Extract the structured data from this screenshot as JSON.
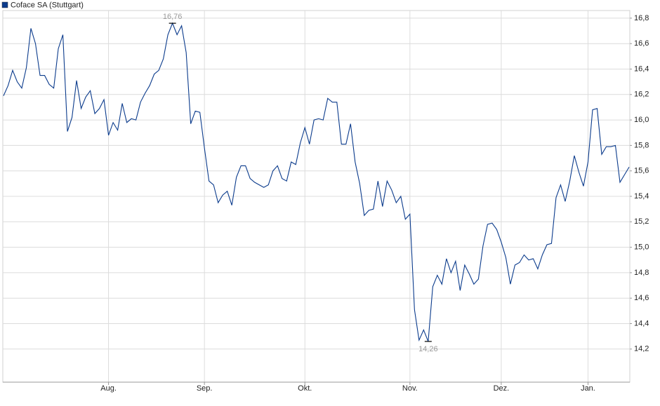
{
  "chart_data": {
    "type": "line",
    "series": [
      {
        "name": "Coface SA (Stuttgart)",
        "color": "#0b3b8c",
        "values": [
          16.19,
          16.27,
          16.39,
          16.3,
          16.25,
          16.41,
          16.72,
          16.6,
          16.35,
          16.35,
          16.28,
          16.25,
          16.56,
          16.67,
          15.91,
          16.02,
          16.31,
          16.09,
          16.18,
          16.23,
          16.05,
          16.09,
          16.16,
          15.88,
          15.98,
          15.92,
          16.13,
          15.98,
          16.01,
          16.0,
          16.14,
          16.21,
          16.27,
          16.36,
          16.39,
          16.48,
          16.67,
          16.76,
          16.67,
          16.74,
          16.53,
          15.97,
          16.07,
          16.06,
          15.78,
          15.52,
          15.49,
          15.35,
          15.41,
          15.44,
          15.33,
          15.55,
          15.64,
          15.64,
          15.54,
          15.51,
          15.49,
          15.47,
          15.49,
          15.6,
          15.64,
          15.54,
          15.52,
          15.67,
          15.65,
          15.82,
          15.94,
          15.81,
          16.0,
          16.01,
          16.0,
          16.17,
          16.14,
          16.14,
          15.81,
          15.81,
          15.97,
          15.67,
          15.5,
          15.25,
          15.29,
          15.3,
          15.52,
          15.32,
          15.52,
          15.45,
          15.35,
          15.4,
          15.22,
          15.26,
          14.51,
          14.27,
          14.35,
          14.26,
          14.69,
          14.78,
          14.71,
          14.91,
          14.8,
          14.89,
          14.66,
          14.86,
          14.79,
          14.71,
          14.75,
          15.01,
          15.18,
          15.19,
          15.14,
          15.04,
          14.92,
          14.71,
          14.86,
          14.88,
          14.94,
          14.9,
          14.91,
          14.83,
          14.94,
          15.02,
          15.03,
          15.39,
          15.49,
          15.36,
          15.52,
          15.72,
          15.59,
          15.48,
          15.67,
          16.08,
          16.09,
          15.73,
          15.79,
          15.79,
          15.8,
          15.51,
          15.57,
          15.63
        ],
        "value_labels": [
          null,
          null,
          null,
          null,
          null,
          null,
          null,
          null,
          null,
          null,
          null,
          null,
          null,
          null,
          null,
          null,
          null,
          null,
          null,
          null,
          null,
          null,
          null,
          null,
          null,
          null,
          null,
          null,
          null,
          null,
          null,
          null,
          null,
          null,
          null,
          null,
          null,
          "16,76",
          null,
          null,
          null,
          null,
          null,
          null,
          null,
          null,
          null,
          null,
          null,
          null,
          null,
          null,
          null,
          null,
          null,
          null,
          null,
          null,
          null,
          null,
          null,
          null,
          null,
          null,
          null,
          null,
          null,
          null,
          null,
          null,
          null,
          null,
          null,
          null,
          null,
          null,
          null,
          null,
          null,
          null,
          null,
          null,
          null,
          null,
          null,
          null,
          null,
          null,
          null,
          null,
          null,
          null,
          null,
          "14,26",
          null,
          null,
          null,
          null,
          null,
          null,
          null,
          null,
          null,
          null,
          null,
          null,
          null,
          null,
          null,
          null,
          null,
          null,
          null,
          null,
          null,
          null,
          null,
          null,
          null,
          null,
          null,
          null,
          null,
          null,
          null,
          null,
          null,
          null,
          null,
          null,
          null,
          null,
          null,
          null,
          null,
          null,
          null,
          null
        ]
      }
    ],
    "categories": [
      null,
      null,
      null,
      null,
      null,
      null,
      null,
      null,
      null,
      null,
      null,
      null,
      null,
      null,
      null,
      null,
      null,
      null,
      null,
      null,
      null,
      null,
      null,
      "Aug.",
      null,
      null,
      null,
      null,
      null,
      null,
      null,
      null,
      null,
      null,
      null,
      null,
      null,
      null,
      null,
      null,
      null,
      null,
      null,
      null,
      "Sep.",
      null,
      null,
      null,
      null,
      null,
      null,
      null,
      null,
      null,
      null,
      null,
      null,
      null,
      null,
      null,
      null,
      null,
      null,
      null,
      null,
      null,
      "Okt.",
      null,
      null,
      null,
      null,
      null,
      null,
      null,
      null,
      null,
      null,
      null,
      null,
      null,
      null,
      null,
      null,
      null,
      null,
      null,
      null,
      null,
      null,
      "Nov.",
      null,
      null,
      null,
      null,
      null,
      null,
      null,
      null,
      null,
      null,
      null,
      null,
      null,
      null,
      null,
      null,
      null,
      null,
      null,
      "Dez.",
      null,
      null,
      null,
      null,
      null,
      null,
      null,
      null,
      null,
      null,
      null,
      null,
      null,
      null,
      null,
      null,
      null,
      null,
      "Jan.",
      null,
      null,
      null,
      null,
      null,
      null,
      null,
      null,
      null
    ],
    "ylim": [
      13.94,
      16.86
    ],
    "yticks": [
      {
        "value": 14.2,
        "label": "14,2"
      },
      {
        "value": 14.4,
        "label": "14,4"
      },
      {
        "value": 14.6,
        "label": "14,6"
      },
      {
        "value": 14.8,
        "label": "14,8"
      },
      {
        "value": 15.0,
        "label": "15,0"
      },
      {
        "value": 15.2,
        "label": "15,2"
      },
      {
        "value": 15.4,
        "label": "15,4"
      },
      {
        "value": 15.6,
        "label": "15,6"
      },
      {
        "value": 15.8,
        "label": "15,8"
      },
      {
        "value": 16.0,
        "label": "16,0"
      },
      {
        "value": 16.2,
        "label": "16,2"
      },
      {
        "value": 16.4,
        "label": "16,4"
      },
      {
        "value": 16.6,
        "label": "16,6"
      },
      {
        "value": 16.8,
        "label": "16,8"
      }
    ],
    "grid": true
  }
}
